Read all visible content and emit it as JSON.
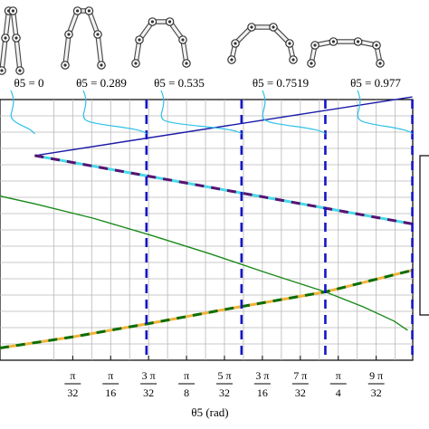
{
  "chart_data": {
    "type": "line",
    "xlabel": "θ5 (rad)",
    "xlim": [
      -0.09,
      0.978
    ],
    "ylim": [
      0,
      1
    ],
    "grid": true,
    "x_ticks": [
      {
        "value": 0.0982,
        "num": "π",
        "den": "32"
      },
      {
        "value": 0.1963,
        "num": "π",
        "den": "16"
      },
      {
        "value": 0.2945,
        "num": "3 π",
        "den": "32"
      },
      {
        "value": 0.3927,
        "num": "π",
        "den": "8"
      },
      {
        "value": 0.4909,
        "num": "5 π",
        "den": "32"
      },
      {
        "value": 0.589,
        "num": "3 π",
        "den": "16"
      },
      {
        "value": 0.6872,
        "num": "7 π",
        "den": "32"
      },
      {
        "value": 0.7854,
        "num": "π",
        "den": "4"
      },
      {
        "value": 0.8836,
        "num": "9 π",
        "den": "32"
      }
    ],
    "markers": [
      {
        "value": 0,
        "label": "θ5 = 0"
      },
      {
        "value": 0.289,
        "label": "θ5 = 0.289"
      },
      {
        "value": 0.535,
        "label": "θ5 = 0.535"
      },
      {
        "value": 0.7519,
        "label": "θ5 = 0.7519"
      },
      {
        "value": 0.977,
        "label": "θ5 = 0.977"
      }
    ],
    "series": [
      {
        "color": "#1a1aa8",
        "dash": "solid",
        "x": [
          0,
          0.977
        ],
        "y": [
          0.785,
          1.01
        ]
      },
      {
        "color": "#46dbe8",
        "color2": "#5a1370",
        "dash": "dashed",
        "x": [
          0,
          0.977
        ],
        "y": [
          0.785,
          0.523
        ]
      },
      {
        "color": "#1a8a1a",
        "dash": "solid",
        "x": [
          -0.09,
          0,
          0.15,
          0.3,
          0.45,
          0.6,
          0.7519,
          0.85,
          0.93,
          0.965
        ],
        "y": [
          0.63,
          0.6,
          0.545,
          0.48,
          0.41,
          0.335,
          0.262,
          0.205,
          0.15,
          0.115
        ]
      },
      {
        "color": "#f0b43a",
        "color2": "#0a6e0a",
        "dash": "dashed",
        "x": [
          -0.09,
          0.1,
          0.3,
          0.5,
          0.7519,
          0.977
        ],
        "y": [
          0.047,
          0.09,
          0.142,
          0.197,
          0.262,
          0.345
        ]
      }
    ]
  }
}
